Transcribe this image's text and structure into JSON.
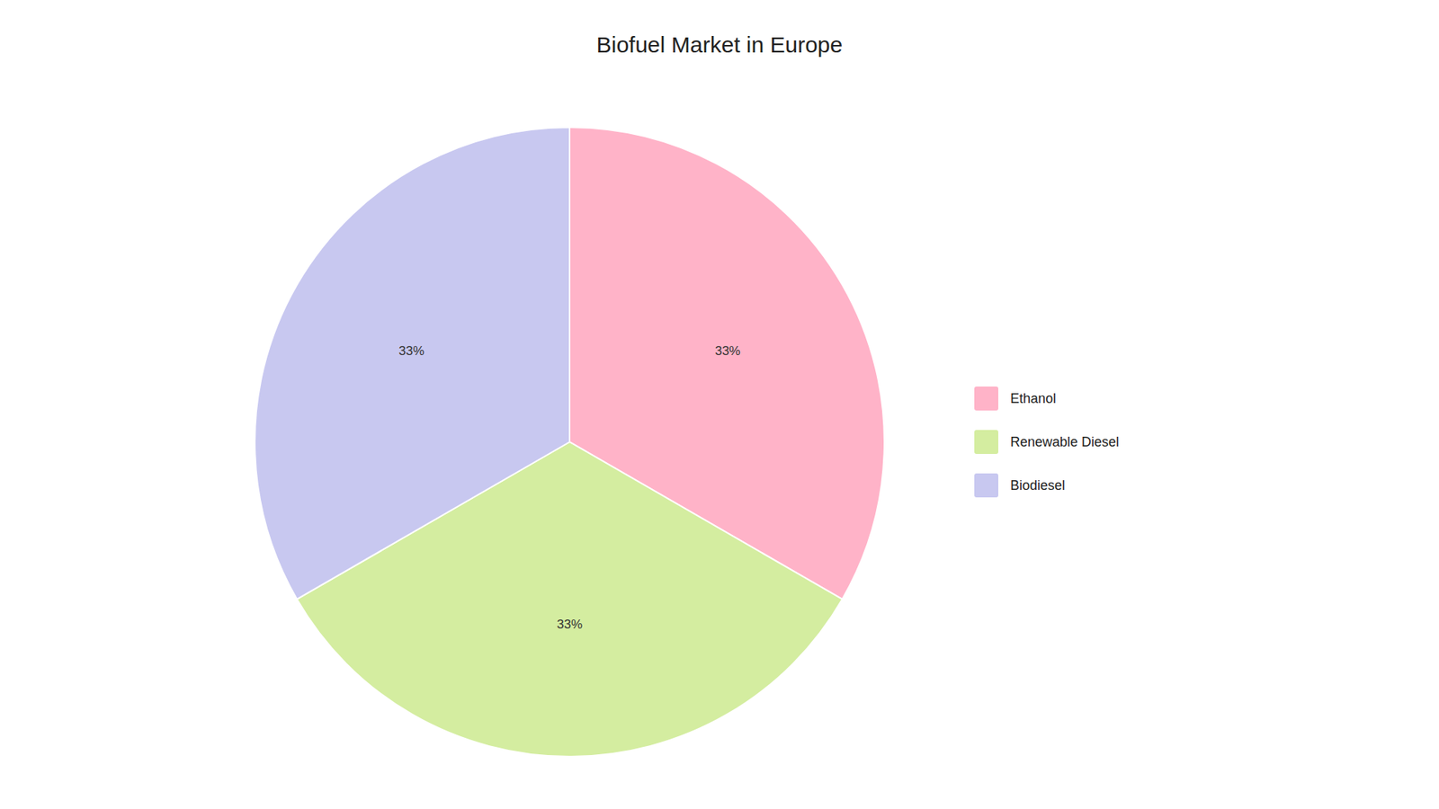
{
  "chart_data": {
    "type": "pie",
    "title": "Biofuel Market in Europe",
    "categories": [
      "Ethanol",
      "Renewable Diesel",
      "Biodiesel"
    ],
    "values": [
      33.33,
      33.34,
      33.33
    ],
    "value_labels": [
      "33%",
      "33%",
      "33%"
    ],
    "colors": [
      "#FFB3C8",
      "#D4EDA0",
      "#C8C8F0"
    ],
    "data_labels": true,
    "legend": "right"
  }
}
